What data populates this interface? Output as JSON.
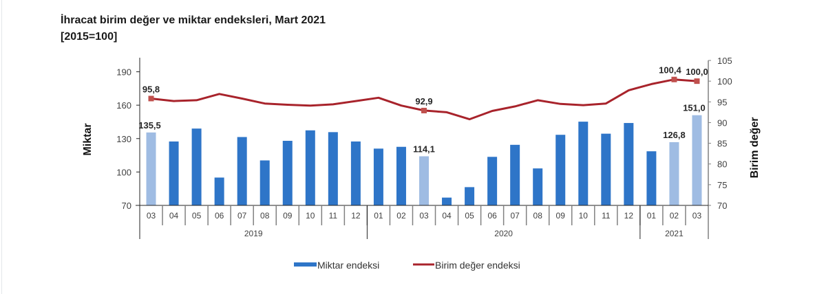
{
  "title": "İhracat birim değer ve miktar endeksleri, Mart 2021",
  "subtitle": "[2015=100]",
  "colors": {
    "bar": "#2e75c8",
    "bar_highlight": "#9fbce3",
    "line": "#a8232b",
    "marker": "#c0504d",
    "axis": "#222222",
    "tick": "#808080"
  },
  "chart_data": {
    "type": "bar+line",
    "title": "İhracat birim değer ve miktar endeksleri, Mart 2021",
    "subtitle": "[2015=100]",
    "categories": [
      "03",
      "04",
      "05",
      "06",
      "07",
      "08",
      "09",
      "10",
      "11",
      "12",
      "01",
      "02",
      "03",
      "04",
      "05",
      "06",
      "07",
      "08",
      "09",
      "10",
      "11",
      "12",
      "01",
      "02",
      "03"
    ],
    "year_groups": [
      {
        "label": "2019",
        "start": 0,
        "end": 9
      },
      {
        "label": "2020",
        "start": 10,
        "end": 21
      },
      {
        "label": "2021",
        "start": 22,
        "end": 24
      }
    ],
    "highlight_indices": [
      0,
      12,
      23,
      24
    ],
    "series": [
      {
        "name": "Miktar endeksi",
        "type": "bar",
        "axis": "left",
        "values": [
          135.5,
          127.4,
          139.0,
          95.0,
          131.4,
          110.4,
          128.0,
          137.4,
          135.8,
          127.4,
          121.0,
          122.6,
          114.1,
          77.0,
          86.4,
          113.6,
          124.4,
          103.2,
          133.4,
          145.2,
          134.4,
          144.0,
          118.6,
          126.8,
          151.0
        ],
        "labels": {
          "0": "135,5",
          "12": "114,1",
          "23": "126,8",
          "24": "151,0"
        }
      },
      {
        "name": "Birim değer endeksi",
        "type": "line",
        "axis": "right",
        "values": [
          95.8,
          95.2,
          95.4,
          96.9,
          95.8,
          94.6,
          94.3,
          94.1,
          94.4,
          95.2,
          96.0,
          94.1,
          92.9,
          92.5,
          90.8,
          92.8,
          93.9,
          95.4,
          94.5,
          94.2,
          94.6,
          97.8,
          99.3,
          100.4,
          100.0
        ],
        "labels": {
          "0": "95,8",
          "12": "92,9",
          "23": "100,4",
          "24": "100,0"
        },
        "marker_indices": [
          0,
          12,
          23,
          24
        ]
      }
    ],
    "y_left": {
      "label": "Miktar",
      "min": 70,
      "max": 190,
      "ticks": [
        70,
        100,
        130,
        160,
        190
      ]
    },
    "y_right": {
      "label": "Birim değer",
      "min": 70,
      "max": 105,
      "ticks": [
        70,
        75,
        80,
        85,
        90,
        95,
        100,
        105
      ]
    },
    "grid": false,
    "legend_position": "bottom"
  },
  "legend": [
    {
      "label": "Miktar endeksi",
      "kind": "bar"
    },
    {
      "label": "Birim değer endeksi",
      "kind": "line"
    }
  ]
}
